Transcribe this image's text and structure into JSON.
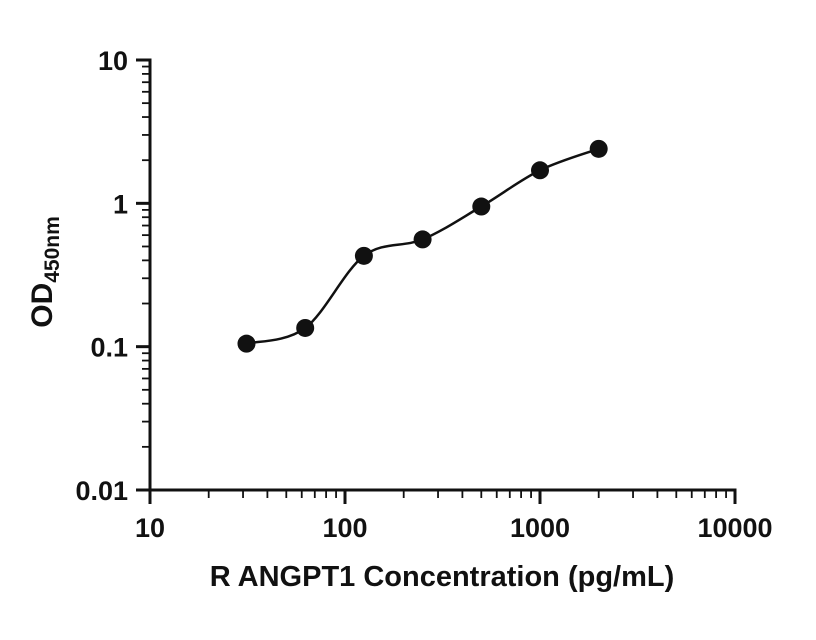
{
  "chart_data": {
    "type": "scatter",
    "title": "",
    "xlabel": "R ANGPT1 Concentration (pg/mL)",
    "ylabel_main": "OD",
    "ylabel_sub": "450nm",
    "x_scale": "log",
    "y_scale": "log",
    "xlim": [
      10,
      10000
    ],
    "ylim": [
      0.01,
      10
    ],
    "x_ticks": [
      10,
      100,
      1000,
      10000
    ],
    "x_tick_labels": [
      "10",
      "100",
      "1000",
      "10000"
    ],
    "y_ticks": [
      0.01,
      0.1,
      1,
      10
    ],
    "y_tick_labels": [
      "0.01",
      "0.1",
      "1",
      "10"
    ],
    "grid": false,
    "legend": "none",
    "curve_style": "smooth-fit",
    "marker_color": "#111111",
    "line_color": "#111111",
    "background_color": "#ffffff",
    "points": [
      {
        "x": 31.25,
        "y": 0.105
      },
      {
        "x": 62.5,
        "y": 0.135
      },
      {
        "x": 125,
        "y": 0.43
      },
      {
        "x": 250,
        "y": 0.56
      },
      {
        "x": 500,
        "y": 0.95
      },
      {
        "x": 1000,
        "y": 1.7
      },
      {
        "x": 2000,
        "y": 2.4
      }
    ]
  }
}
